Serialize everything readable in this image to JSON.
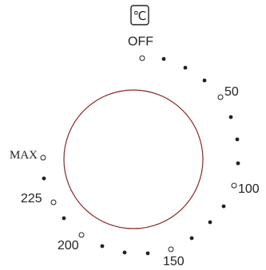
{
  "unit_symbol": "℃",
  "labels": {
    "off": "OFF",
    "p50": "50",
    "p100": "100",
    "p150": "150",
    "p200": "200",
    "p225": "225",
    "max": "MAX"
  },
  "colors": {
    "knob_outline": "#8b2a2a",
    "ink": "#222222"
  },
  "icons": {
    "unit": "celsius-icon"
  }
}
